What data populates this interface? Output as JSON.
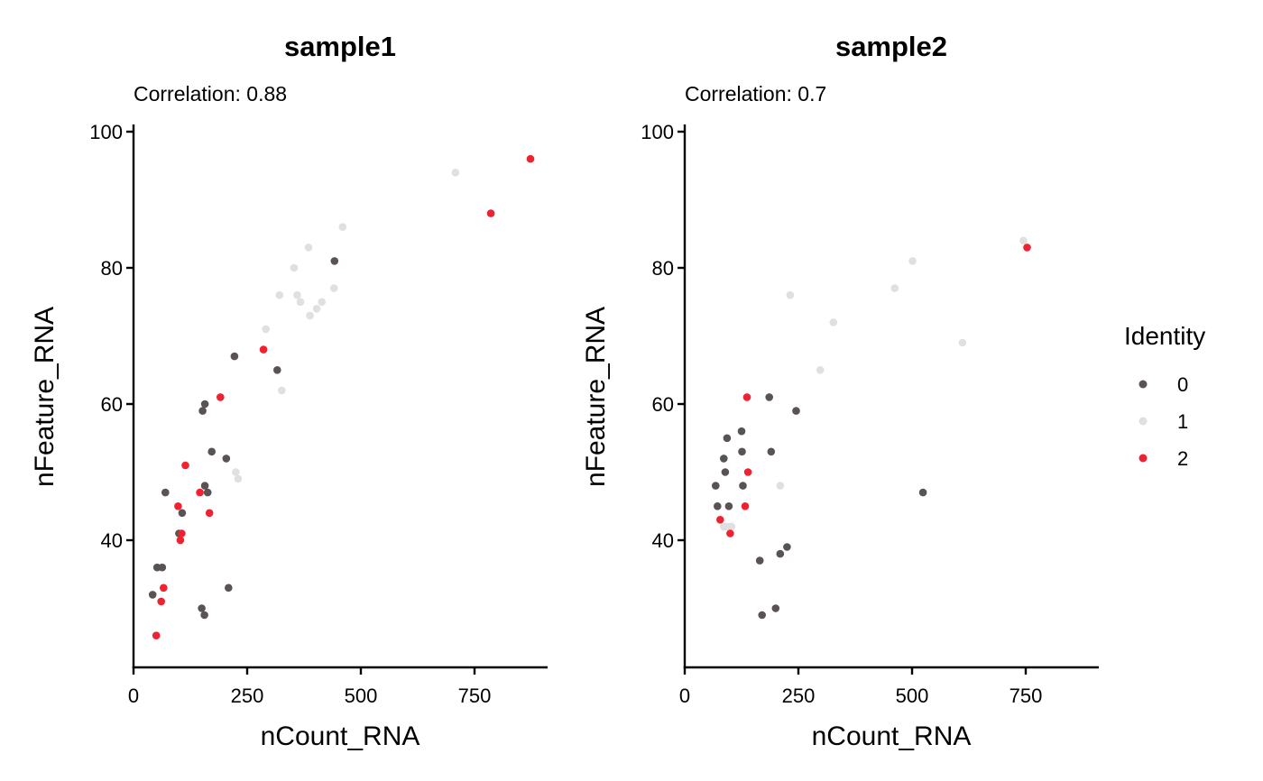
{
  "legend": {
    "title": "Identity",
    "items": [
      {
        "label": "0",
        "color": "#5a5353"
      },
      {
        "label": "1",
        "color": "#e1dfdf"
      },
      {
        "label": "2",
        "color": "#ee2230"
      }
    ]
  },
  "chart_data": [
    {
      "type": "scatter",
      "title": "sample1",
      "subtitle": "Correlation: 0.88",
      "xlabel": "nCount_RNA",
      "ylabel": "nFeature_RNA",
      "xlim": [
        0,
        912
      ],
      "ylim": [
        22,
        101
      ],
      "xticks": [
        0,
        250,
        500,
        750
      ],
      "yticks": [
        40,
        60,
        80,
        100
      ],
      "series": [
        {
          "name": "0",
          "color": "#5a5353",
          "points": [
            [
              42,
              32
            ],
            [
              52,
              36
            ],
            [
              63,
              36
            ],
            [
              70,
              47
            ],
            [
              100,
              41
            ],
            [
              107,
              44
            ],
            [
              152,
              59
            ],
            [
              157,
              60
            ],
            [
              150,
              30
            ],
            [
              156,
              29
            ],
            [
              157,
              48
            ],
            [
              163,
              47
            ],
            [
              172,
              53
            ],
            [
              204,
              52
            ],
            [
              209,
              33
            ],
            [
              222,
              67
            ],
            [
              316,
              65
            ],
            [
              442,
              81
            ]
          ]
        },
        {
          "name": "1",
          "color": "#e1dfdf",
          "points": [
            [
              225,
              50
            ],
            [
              230,
              49
            ],
            [
              291,
              71
            ],
            [
              321,
              76
            ],
            [
              326,
              62
            ],
            [
              353,
              80
            ],
            [
              360,
              76
            ],
            [
              367,
              75
            ],
            [
              385,
              83
            ],
            [
              388,
              73
            ],
            [
              403,
              74
            ],
            [
              414,
              75
            ],
            [
              441,
              77
            ],
            [
              460,
              86
            ],
            [
              708,
              94
            ]
          ]
        },
        {
          "name": "2",
          "color": "#ee2230",
          "points": [
            [
              50,
              26
            ],
            [
              61,
              31
            ],
            [
              66,
              33
            ],
            [
              98,
              45
            ],
            [
              103,
              40
            ],
            [
              106,
              41
            ],
            [
              114,
              51
            ],
            [
              146,
              47
            ],
            [
              167,
              44
            ],
            [
              191,
              61
            ],
            [
              286,
              68
            ],
            [
              786,
              88
            ],
            [
              873,
              96
            ]
          ]
        }
      ]
    },
    {
      "type": "scatter",
      "title": "sample2",
      "subtitle": "Correlation: 0.7",
      "xlabel": "nCount_RNA",
      "ylabel": "nFeature_RNA",
      "xlim": [
        0,
        912
      ],
      "ylim": [
        22,
        101
      ],
      "xticks": [
        0,
        250,
        500,
        750
      ],
      "yticks": [
        40,
        60,
        80,
        100
      ],
      "series": [
        {
          "name": "0",
          "color": "#5a5353",
          "points": [
            [
              68,
              48
            ],
            [
              72,
              45
            ],
            [
              86,
              52
            ],
            [
              89,
              50
            ],
            [
              93,
              55
            ],
            [
              97,
              45
            ],
            [
              125,
              56
            ],
            [
              126,
              53
            ],
            [
              128,
              48
            ],
            [
              165,
              37
            ],
            [
              170,
              29
            ],
            [
              186,
              61
            ],
            [
              190,
              53
            ],
            [
              200,
              30
            ],
            [
              210,
              38
            ],
            [
              225,
              39
            ],
            [
              245,
              59
            ],
            [
              524,
              47
            ]
          ]
        },
        {
          "name": "1",
          "color": "#e1dfdf",
          "points": [
            [
              86,
              42
            ],
            [
              92,
              42
            ],
            [
              97,
              42
            ],
            [
              103,
              42
            ],
            [
              210,
              48
            ],
            [
              232,
              76
            ],
            [
              298,
              65
            ],
            [
              327,
              72
            ],
            [
              462,
              77
            ],
            [
              501,
              81
            ],
            [
              611,
              69
            ],
            [
              745,
              84
            ]
          ]
        },
        {
          "name": "2",
          "color": "#ee2230",
          "points": [
            [
              78,
              43
            ],
            [
              100,
              41
            ],
            [
              133,
              45
            ],
            [
              137,
              61
            ],
            [
              139,
              50
            ],
            [
              753,
              83
            ]
          ]
        }
      ]
    }
  ]
}
